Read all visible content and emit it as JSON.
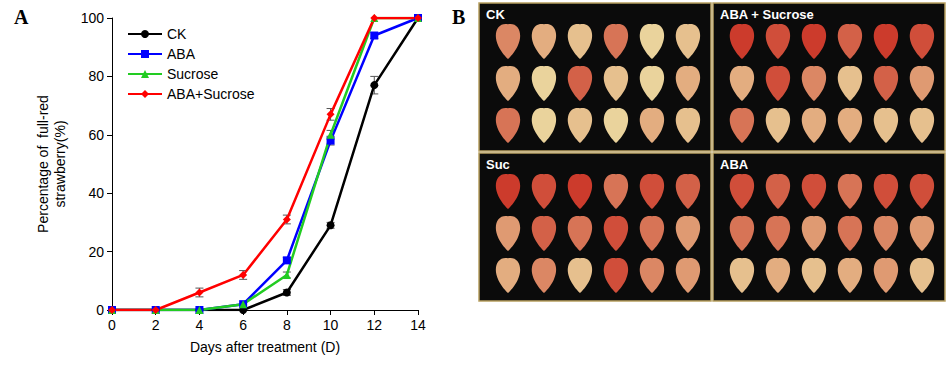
{
  "panel_labels": [
    "A",
    "B"
  ],
  "chart_data": {
    "type": "line",
    "x_label": "Days after treatment (D)",
    "y_label": "Percentage of  full-red\nstrawberry(%)",
    "x": [
      0,
      2,
      4,
      6,
      8,
      10,
      12,
      14
    ],
    "series": [
      {
        "name": "CK",
        "color": "#000000",
        "marker": "circle",
        "values": [
          0,
          0,
          0,
          0,
          6,
          29,
          77,
          100
        ],
        "errors": [
          0,
          0,
          0,
          0,
          1,
          1,
          3,
          0
        ]
      },
      {
        "name": "ABA",
        "color": "#0000ff",
        "marker": "square",
        "values": [
          0,
          0,
          0,
          2,
          17,
          58,
          94,
          100
        ],
        "errors": [
          0,
          0,
          0,
          0,
          1,
          1.5,
          1,
          0
        ]
      },
      {
        "name": "Sucrose",
        "color": "#22cc22",
        "marker": "triangle",
        "values": [
          0,
          0,
          0,
          2,
          12,
          60,
          100,
          100
        ],
        "errors": [
          0,
          0,
          0,
          0,
          1,
          1.5,
          0,
          0
        ]
      },
      {
        "name": "ABA+Sucrose",
        "color": "#ff0000",
        "marker": "diamond",
        "values": [
          0,
          0,
          6,
          12,
          31,
          67,
          100,
          100
        ],
        "errors": [
          0,
          0,
          1.5,
          1.5,
          1.5,
          2,
          0,
          0
        ]
      }
    ],
    "xlim": [
      0,
      14
    ],
    "xticks": [
      0,
      2,
      4,
      6,
      8,
      10,
      12,
      14
    ],
    "ylim": [
      0,
      100
    ],
    "yticks": [
      0,
      20,
      40,
      60,
      80,
      100
    ],
    "legend": "upper left",
    "grid": false
  },
  "photo": {
    "labels": [
      "CK",
      "ABA + Sucrose",
      "Suc",
      "ABA"
    ]
  }
}
